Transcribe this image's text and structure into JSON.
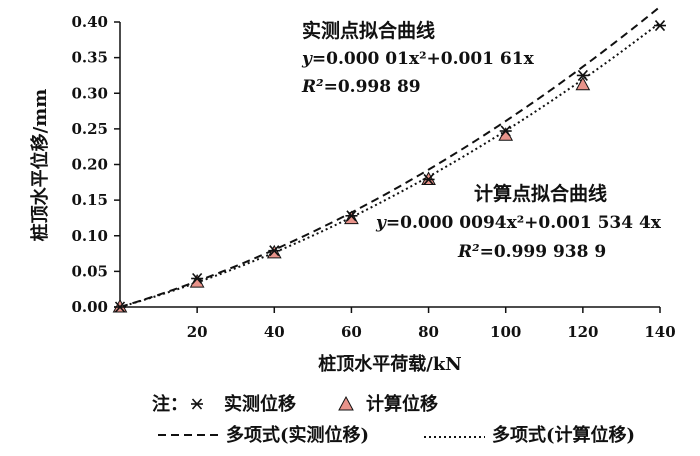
{
  "chart_data": {
    "type": "scatter",
    "x": [
      0,
      20,
      40,
      60,
      80,
      100,
      120,
      140
    ],
    "series": [
      {
        "name": "实测位移",
        "marker": "asterisk",
        "color": "#111111",
        "values": [
          0.0,
          0.04,
          0.079,
          0.128,
          0.179,
          0.247,
          0.325,
          0.395
        ]
      },
      {
        "name": "计算位移",
        "marker": "triangle",
        "color": "#e8938a",
        "values": [
          0.0,
          0.035,
          0.076,
          0.124,
          0.179,
          0.241,
          0.312,
          null
        ]
      }
    ],
    "fits": [
      {
        "name": "多项式(实测位移)",
        "style": "dashed",
        "a": 1e-05,
        "b": 0.00161
      },
      {
        "name": "多项式(计算位移)",
        "style": "dotted",
        "a": 9.4e-06,
        "b": 0.0015344
      }
    ],
    "xlabel": "桩顶水平荷载/kN",
    "ylabel": "桩顶水平位移/mm",
    "xlim": [
      0,
      140
    ],
    "ylim": [
      0,
      0.4
    ],
    "xticks": [
      "20",
      "40",
      "60",
      "80",
      "100",
      "120",
      "140"
    ],
    "yticks": [
      "0.00",
      "0.05",
      "0.10",
      "0.15",
      "0.20",
      "0.25",
      "0.30",
      "0.35",
      "0.40"
    ],
    "grid": false,
    "annotations": {
      "measured": {
        "title": "实测点拟合曲线",
        "eq_lhs": "y",
        "eq_rhs": "=0.000 01x²+0.001 61x",
        "r2_lhs": "R²",
        "r2_rhs": "=0.998 89"
      },
      "calculated": {
        "title": "计算点拟合曲线",
        "eq_lhs": "y",
        "eq_rhs": "=0.000 0094x²+0.001 534 4x",
        "r2_lhs": "R²",
        "r2_rhs": "=0.999 938 9"
      }
    },
    "legend": {
      "note_label": "注：",
      "items": [
        "实测位移",
        "计算位移"
      ],
      "fit_items": [
        "多项式(实测位移)",
        "多项式(计算位移)"
      ],
      "placement": "bottom"
    }
  }
}
